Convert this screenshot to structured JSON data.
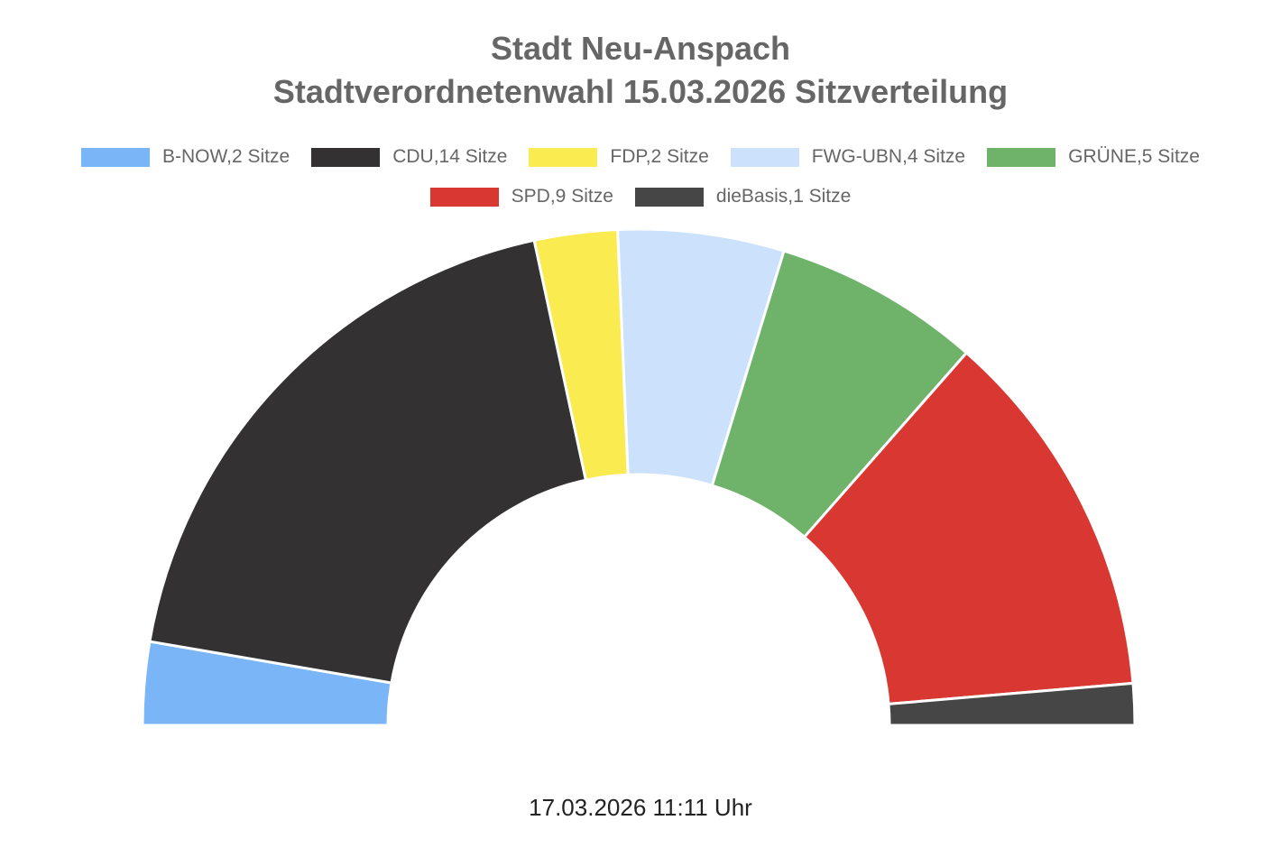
{
  "title_lines": [
    "Stadt Neu-Anspach",
    "Stadtverordnetenwahl 15.03.2026 Sitzverteilung"
  ],
  "footer": "17.03.2026 11:11 Uhr",
  "chart_data": {
    "type": "pie",
    "variant": "half-doughnut",
    "title": "Stadt Neu-Anspach Stadtverordnetenwahl 15.03.2026 Sitzverteilung",
    "legend_position": "top",
    "categories": [
      "B-NOW",
      "CDU",
      "FDP",
      "FWG-UBN",
      "GRÜNE",
      "SPD",
      "dieBasis"
    ],
    "values": [
      2,
      14,
      2,
      4,
      5,
      9,
      1
    ],
    "legend_labels": [
      "B-NOW,2 Sitze",
      "CDU,14 Sitze",
      "FDP,2 Sitze",
      "FWG-UBN,4 Sitze",
      "GRÜNE,5 Sitze",
      "SPD,9 Sitze",
      "dieBasis,1 Sitze"
    ],
    "colors": [
      "#7ab5f8",
      "#333132",
      "#f9eb50",
      "#cce1fb",
      "#6fb36b",
      "#d93832",
      "#464646"
    ]
  }
}
